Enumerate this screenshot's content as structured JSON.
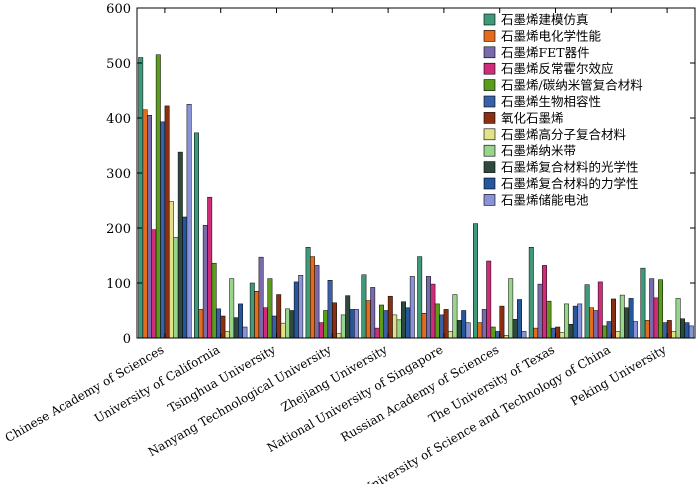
{
  "chart_data": {
    "type": "bar",
    "title": "",
    "xlabel": "",
    "ylabel": "",
    "ylim": [
      0,
      600
    ],
    "yticks": [
      0,
      100,
      200,
      300,
      400,
      500,
      600
    ],
    "grid": false,
    "legend_placement": "top-right",
    "categories": [
      "Chinese Academy of Sciences",
      "University of California",
      "Tsinghua University",
      "Nanyang Technological University",
      "Zhejiang University",
      "National University of Singapore",
      "Russian Academy of Sciences",
      "The University of Texas",
      "University of Science and Technology of China",
      "Peking University"
    ],
    "series": [
      {
        "name": "石墨烯建模仿真",
        "color": "#3e9a79",
        "values": [
          510,
          373,
          100,
          165,
          115,
          148,
          208,
          165,
          97,
          127
        ]
      },
      {
        "name": "石墨烯电化学性能",
        "color": "#e46c1c",
        "values": [
          415,
          52,
          85,
          148,
          68,
          45,
          28,
          18,
          55,
          32
        ]
      },
      {
        "name": "石墨烯FET器件",
        "color": "#7a6aab",
        "values": [
          405,
          205,
          147,
          132,
          92,
          112,
          52,
          98,
          50,
          108
        ]
      },
      {
        "name": "石墨烯反常霍尔效应",
        "color": "#cf2c79",
        "values": [
          197,
          256,
          55,
          28,
          18,
          98,
          140,
          132,
          102,
          73
        ]
      },
      {
        "name": "石墨烯/碳纳米管复合材料",
        "color": "#5c9c1c",
        "values": [
          515,
          136,
          108,
          50,
          60,
          62,
          20,
          67,
          22,
          106
        ]
      },
      {
        "name": "石墨烯生物相容性",
        "color": "#3a60a8",
        "values": [
          393,
          53,
          40,
          105,
          50,
          42,
          12,
          18,
          30,
          28
        ]
      },
      {
        "name": "氧化石墨烯",
        "color": "#8b2f12",
        "values": [
          422,
          40,
          79,
          64,
          76,
          52,
          58,
          20,
          71,
          32
        ]
      },
      {
        "name": "石墨烯高分子复合材料",
        "color": "#e2e388",
        "values": [
          248,
          12,
          27,
          8,
          42,
          12,
          5,
          10,
          12,
          12
        ]
      },
      {
        "name": "石墨烯纳米带",
        "color": "#98d48c",
        "values": [
          183,
          108,
          53,
          42,
          33,
          79,
          108,
          62,
          78,
          72
        ]
      },
      {
        "name": "石墨烯复合材料的光学性",
        "color": "#2e4a3c",
        "values": [
          338,
          37,
          50,
          77,
          66,
          32,
          34,
          25,
          55,
          35
        ]
      },
      {
        "name": "石墨烯复合材料的力学性",
        "color": "#26569c",
        "values": [
          220,
          62,
          102,
          52,
          55,
          50,
          70,
          58,
          72,
          28
        ]
      },
      {
        "name": "石墨烯储能电池",
        "color": "#8a92d8",
        "values": [
          425,
          20,
          114,
          52,
          112,
          28,
          12,
          62,
          30,
          22
        ]
      }
    ]
  }
}
